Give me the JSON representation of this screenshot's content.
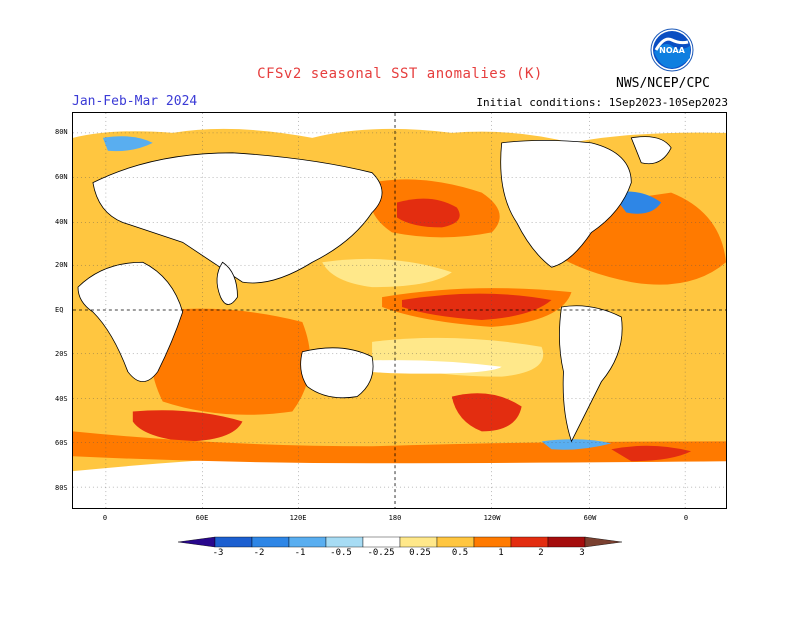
{
  "header": {
    "title": "CFSv2 seasonal SST anomalies (K)",
    "season": "Jan-Feb-Mar 2024",
    "initial_conditions": "Initial conditions: 1Sep2023-10Sep2023",
    "agency": "NWS/NCEP/CPC",
    "logo_text": "NOAA"
  },
  "map": {
    "lat_labels": [
      "80N",
      "60N",
      "40N",
      "20N",
      "EQ",
      "20S",
      "40S",
      "60S",
      "80S"
    ],
    "lon_labels": [
      "0",
      "60E",
      "120E",
      "180",
      "120W",
      "60W",
      "0"
    ],
    "colors": {
      "ocean_neutral": "#ffffff",
      "land": "#ffffff",
      "pos_025": "#ffe88a",
      "pos_05": "#ffc640",
      "pos_1": "#ff7a00",
      "pos_2": "#e32d10",
      "pos_3": "#a50d0d"
    }
  },
  "colorbar": {
    "labels": [
      "-3",
      "-2",
      "-1",
      "-0.5",
      "-0.25",
      "0.25",
      "0.5",
      "1",
      "2",
      "3"
    ],
    "colors": [
      "#28078c",
      "#1c5fd0",
      "#2e86e6",
      "#59aef0",
      "#a7dcf4",
      "#ffffff",
      "#ffe88a",
      "#ffc640",
      "#ff7a00",
      "#e32d10",
      "#a50d0d",
      "#7a4030"
    ]
  }
}
